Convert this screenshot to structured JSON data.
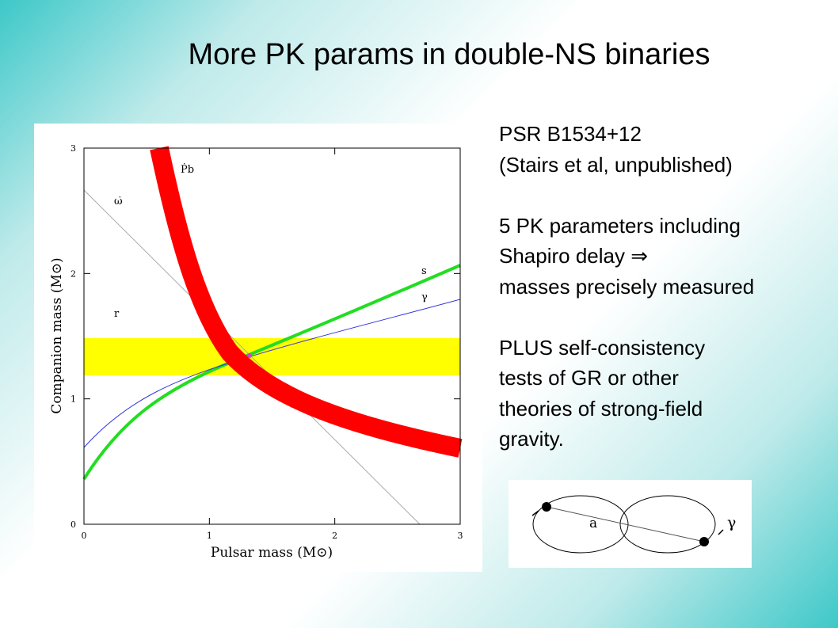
{
  "header": {
    "title": "More PK params in double-NS binaries"
  },
  "figure": {
    "x_label": "Pulsar mass (M⊙)",
    "y_label": "Companion mass (M⊙)",
    "xticks": [
      0,
      1,
      2,
      3
    ],
    "yticks": [
      0,
      1,
      2,
      3
    ],
    "xlim": [
      0,
      3
    ],
    "ylim": [
      0,
      3
    ],
    "curve_labels": [
      "Ṗb",
      "ω̇",
      "r",
      "s",
      "γ"
    ]
  },
  "text": {
    "blocks": [
      [
        "PSR B1534+12",
        "(Stairs et al, unpublished)"
      ],
      [
        "5 PK parameters including",
        "Shapiro delay ⇒",
        "masses precisely measured"
      ],
      [
        "PLUS self-consistency",
        "tests of GR or other",
        "theories of strong-field",
        "gravity."
      ]
    ]
  },
  "diagram": {
    "labels": [
      "a",
      "γ"
    ]
  }
}
